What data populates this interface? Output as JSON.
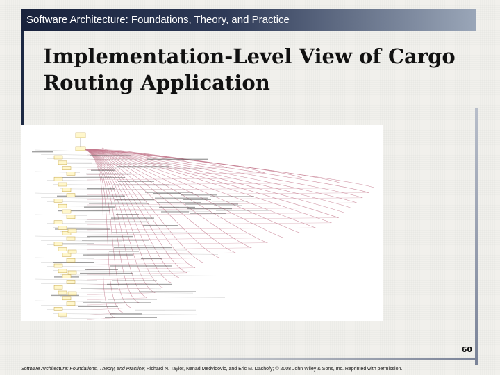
{
  "header": {
    "course_title": "Software Architecture: Foundations, Theory, and Practice"
  },
  "slide": {
    "title_line1": "Implementation-Level View of Cargo",
    "title_line2": "Routing Application",
    "page_number": "60"
  },
  "footer": {
    "book_title": "Software Architecture: Foundations, Theory, and Practice",
    "credit": "; Richard N. Taylor, Nenad Medvidovic, and Eric M. Dashofy; © 2008 John Wiley & Sons, Inc. Reprinted with permission."
  },
  "colors": {
    "header_gradient_start": "#18223c",
    "header_gradient_end": "#9aa6b8",
    "link_pink": "#c47a8e",
    "node_fill": "#fff7cc",
    "node_stroke": "#c8a84a"
  },
  "figure": {
    "root_node": "SoftArch",
    "hub_node": "Interface"
  }
}
